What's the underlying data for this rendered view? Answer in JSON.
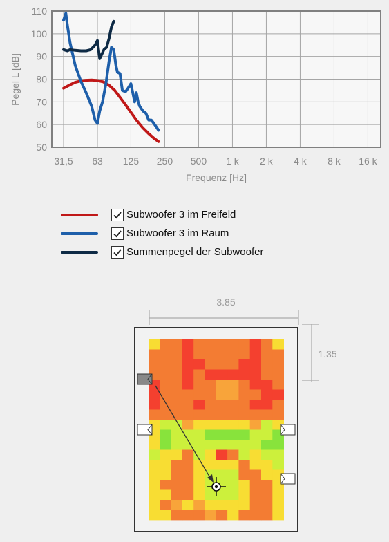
{
  "chart_data": {
    "type": "line",
    "xlabel": "Frequenz [Hz]",
    "ylabel": "Pegel L [dB]",
    "ylim": [
      50,
      110
    ],
    "yticks": [
      "50",
      "60",
      "70",
      "80",
      "90",
      "100",
      "110"
    ],
    "xtick_labels": [
      "31,5",
      "63",
      "125",
      "250",
      "500",
      "1 k",
      "2 k",
      "4 k",
      "8 k",
      "16 k"
    ],
    "xticks_hz": [
      31.5,
      63,
      125,
      250,
      500,
      1000,
      2000,
      4000,
      8000,
      16000
    ],
    "x_scale": "log2 (octaves)",
    "grid": true,
    "series": [
      {
        "name": "Subwoofer 3 im Freifeld",
        "color": "#c01818",
        "x": [
          31.5,
          36,
          40,
          45,
          50,
          56,
          63,
          71,
          80,
          90,
          100,
          112,
          125,
          140,
          160,
          180,
          200,
          220
        ],
        "y": [
          76,
          77.5,
          78.6,
          79.2,
          79.5,
          79.6,
          79.4,
          78.8,
          77.3,
          75,
          72,
          68.7,
          65.4,
          62,
          58.5,
          56,
          54,
          52.5
        ]
      },
      {
        "name": "Subwoofer 3 im Raum",
        "color": "#1e5faa",
        "x": [
          31.5,
          33,
          34,
          36,
          40,
          45,
          50,
          56,
          60,
          63,
          66,
          70,
          75,
          80,
          84,
          88,
          92,
          95,
          100,
          105,
          112,
          118,
          125,
          130,
          135,
          140,
          145,
          150,
          160,
          170,
          180,
          190,
          200,
          210,
          220
        ],
        "y": [
          106,
          109,
          104,
          96,
          86,
          79,
          74,
          68,
          62,
          60.5,
          66,
          70,
          78,
          88,
          94,
          93,
          86,
          83,
          82.5,
          75,
          74.5,
          76,
          78,
          74,
          70,
          74,
          70,
          68,
          66,
          65,
          62,
          62,
          60.5,
          59,
          57.5
        ]
      },
      {
        "name": "Summenpegel der Subwoofer",
        "color": "#0e2a45",
        "x": [
          31.5,
          34,
          36,
          40,
          45,
          50,
          55,
          60,
          63,
          66,
          69,
          72,
          76,
          80,
          84,
          88
        ],
        "y": [
          93,
          92.5,
          93,
          92.7,
          92.5,
          92.5,
          93,
          95,
          97,
          89,
          91,
          93,
          94,
          98,
          103,
          105.5
        ]
      }
    ]
  },
  "legend": {
    "items": [
      {
        "label": "Subwoofer 3 im Freifeld",
        "color": "#c01818",
        "checked": true
      },
      {
        "label": "Subwoofer 3 im Raum",
        "color": "#1e5faa",
        "checked": true
      },
      {
        "label": "Summenpegel der Subwoofer",
        "color": "#0e2a45",
        "checked": true
      }
    ]
  },
  "room": {
    "width_label": "3.85",
    "depth_label": "1.35",
    "heatmap_colors": {
      "R": "#f4402f",
      "O": "#f37c33",
      "A": "#f8a43a",
      "Y": "#f8dd33",
      "L": "#ccf03c",
      "G": "#88e33c"
    },
    "heatmap_grid": [
      "YOOROOOOOROY",
      "OOOROOOOOROO",
      "OOORROOORROO",
      "OOORORRRRROO",
      "ROOROOAAORRO",
      "ROOOOOAAOORR",
      "ROOOROOOORRO",
      "OOOOOOOOOOOO",
      "YLLAYYYYYALY",
      "YGLLLGGGGLLG",
      "YGLLLLLLLLGG",
      "LYYOLYROLYLL",
      "YYOOYYYYOYYL",
      "YYOOYLLLOOYY",
      "YOOOYLLLYOOY",
      "YYOOYLLLYOOY",
      "YOAYAYYYYOOY",
      "YYOOOAOYOOOY"
    ],
    "speakers": [
      "active-left-upper",
      "left-mid",
      "right-mid",
      "right-lower"
    ],
    "listener": "listening-position"
  }
}
